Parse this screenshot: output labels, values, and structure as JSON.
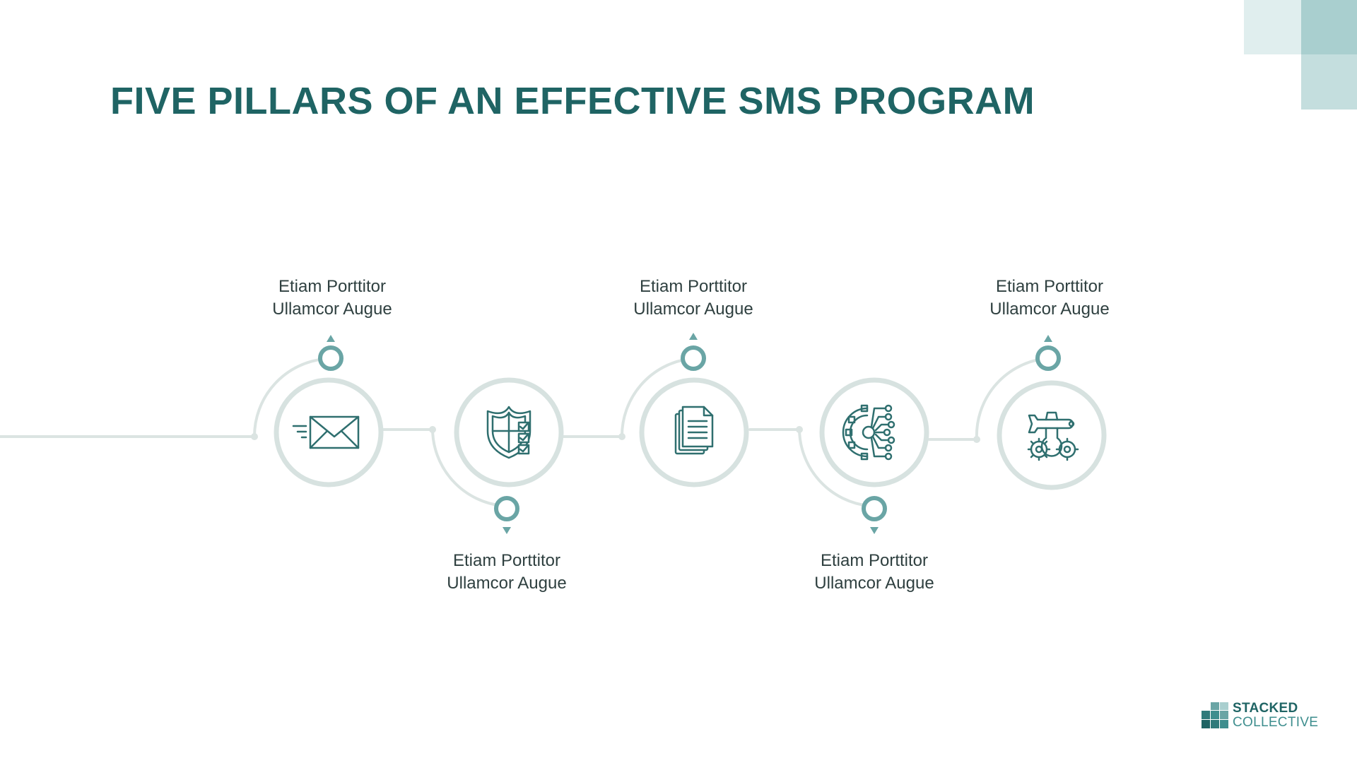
{
  "slide": {
    "title": "FIVE PILLARS OF AN EFFECTIVE SMS PROGRAM"
  },
  "steps": [
    {
      "icon": "envelope-icon",
      "line1": "Etiam Porttitor",
      "line2": "Ullamcor Augue",
      "position": "above"
    },
    {
      "icon": "shield-checklist-icon",
      "line1": "Etiam Porttitor",
      "line2": "Ullamcor Augue",
      "position": "below"
    },
    {
      "icon": "documents-icon",
      "line1": "Etiam Porttitor",
      "line2": "Ullamcor Augue",
      "position": "above"
    },
    {
      "icon": "gear-circuit-icon",
      "line1": "Etiam Porttitor",
      "line2": "Ullamcor Augue",
      "position": "below"
    },
    {
      "icon": "wrench-gear-icon",
      "line1": "Etiam Porttitor",
      "line2": "Ullamcor Augue",
      "position": "above"
    }
  ],
  "logo": {
    "line1": "STACKED",
    "line2": "COLLECTIVE"
  },
  "colors": {
    "title": "#1f6464",
    "accent": "#6aa5a5",
    "connector": "#dbe4e2",
    "icon": "#2f6f6f",
    "text": "#2f4040"
  }
}
